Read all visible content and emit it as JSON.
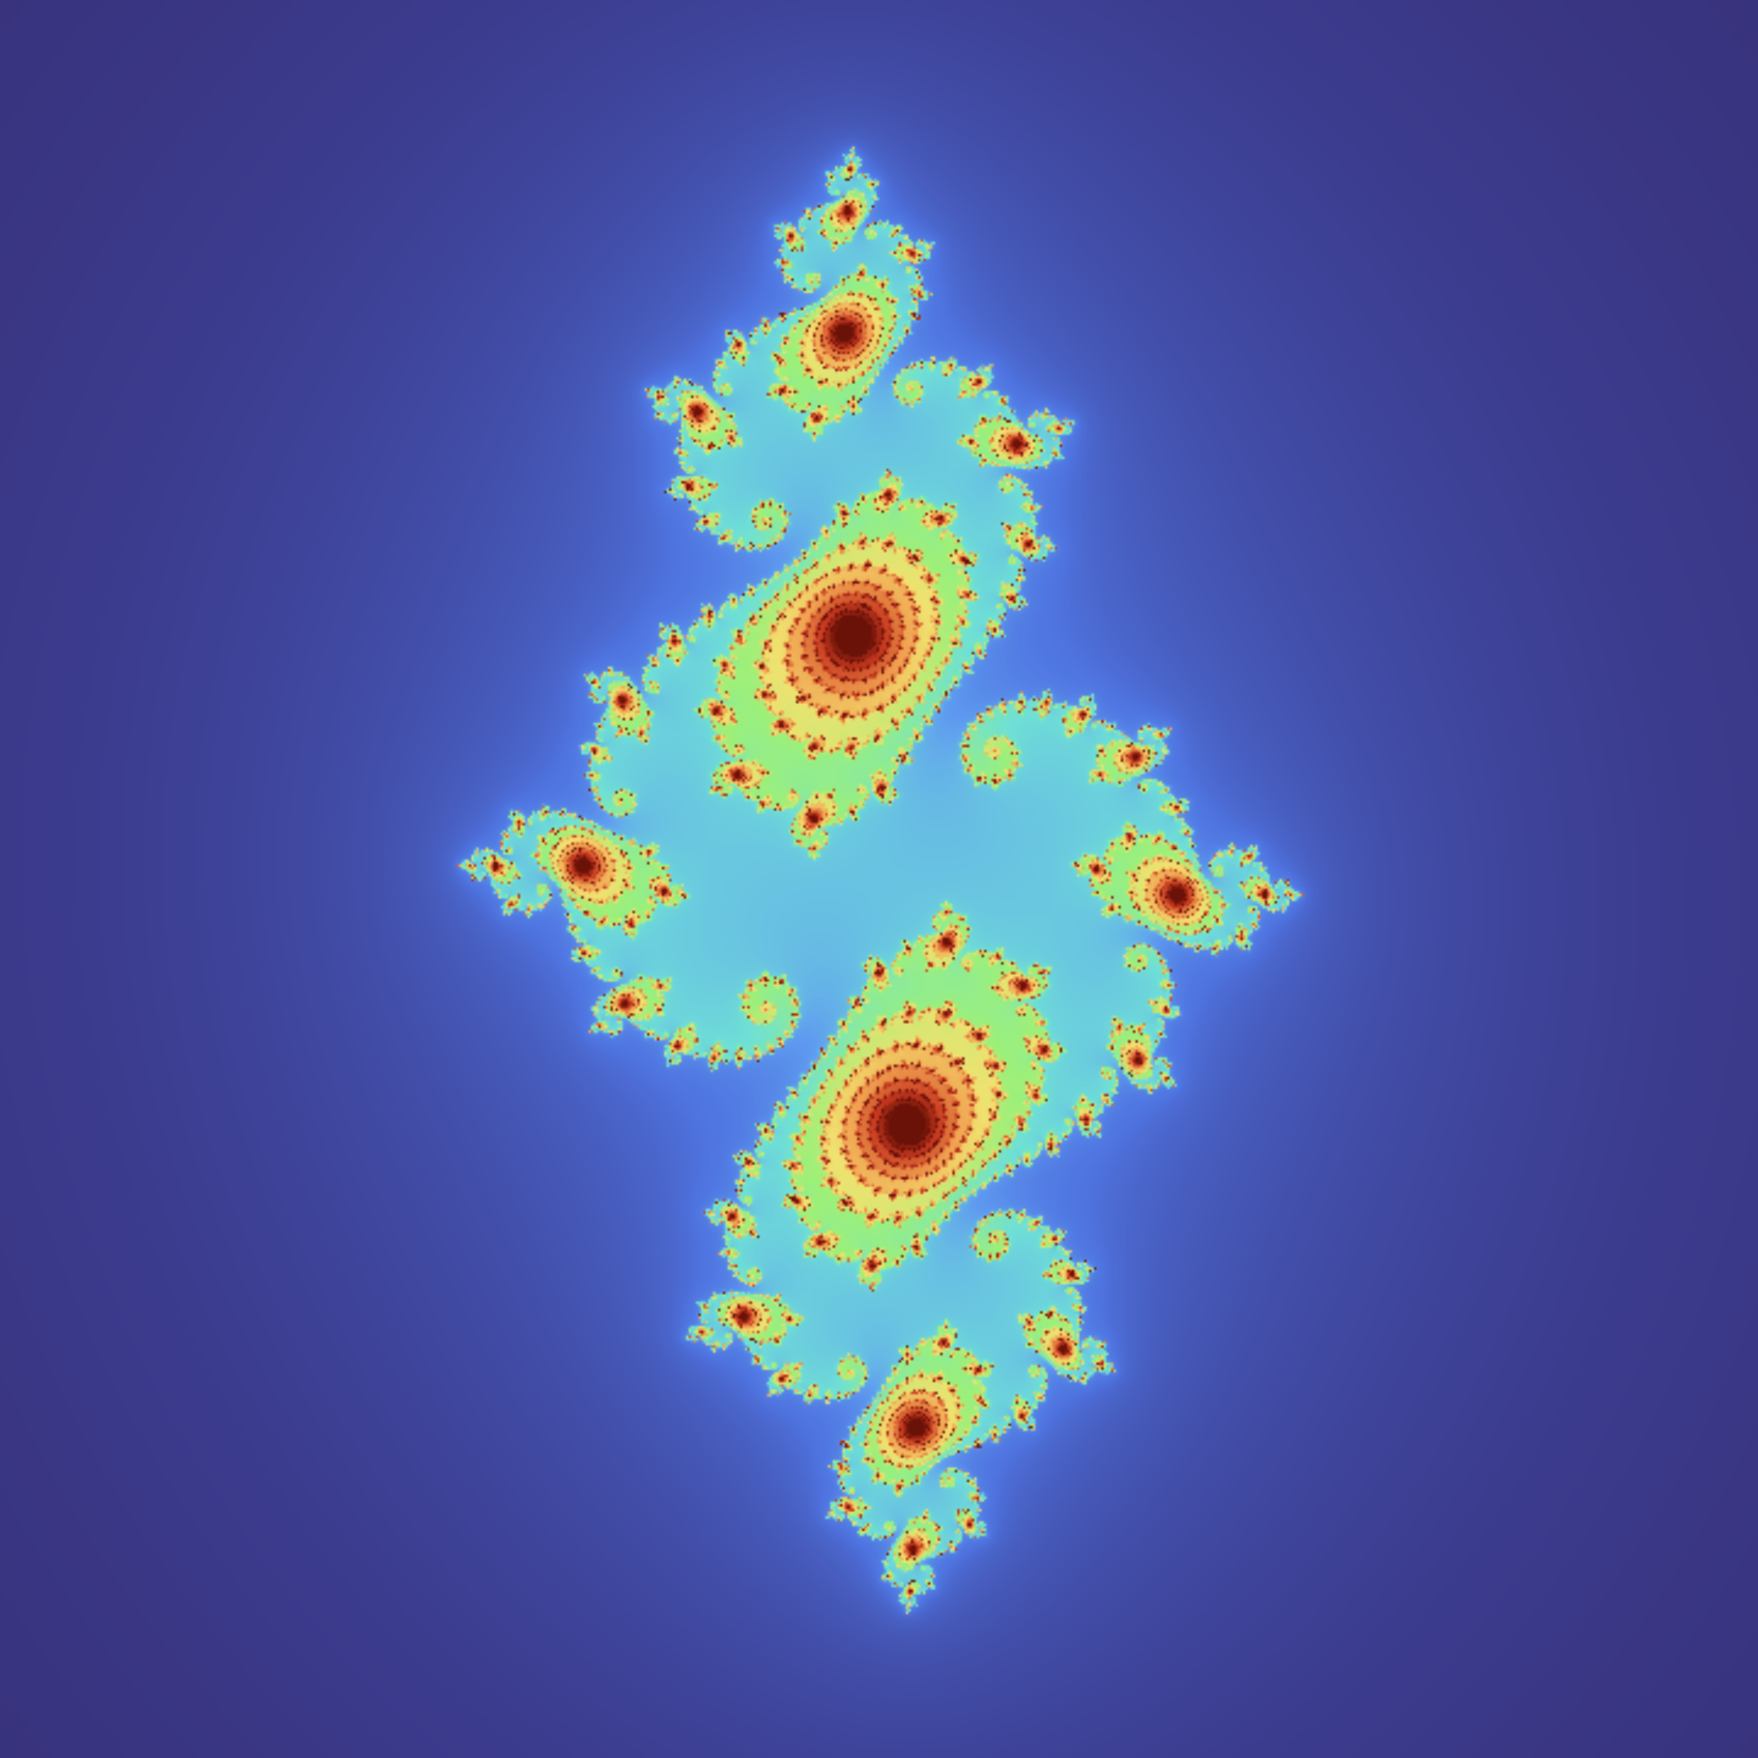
{
  "image": {
    "subject": "julia-set-fractal",
    "palette": {
      "background_outer": "#2a1a45",
      "background_mid": "#33245e",
      "halo": "#3b3a8c",
      "field_blue": "#4f74e0",
      "light_blue": "#5f9cf0",
      "cyan": "#6fe0d6",
      "green": "#9cf07a",
      "yellow": "#f0e270",
      "orange": "#f0a050",
      "red": "#c83a20",
      "dark_red": "#6a1208"
    }
  }
}
